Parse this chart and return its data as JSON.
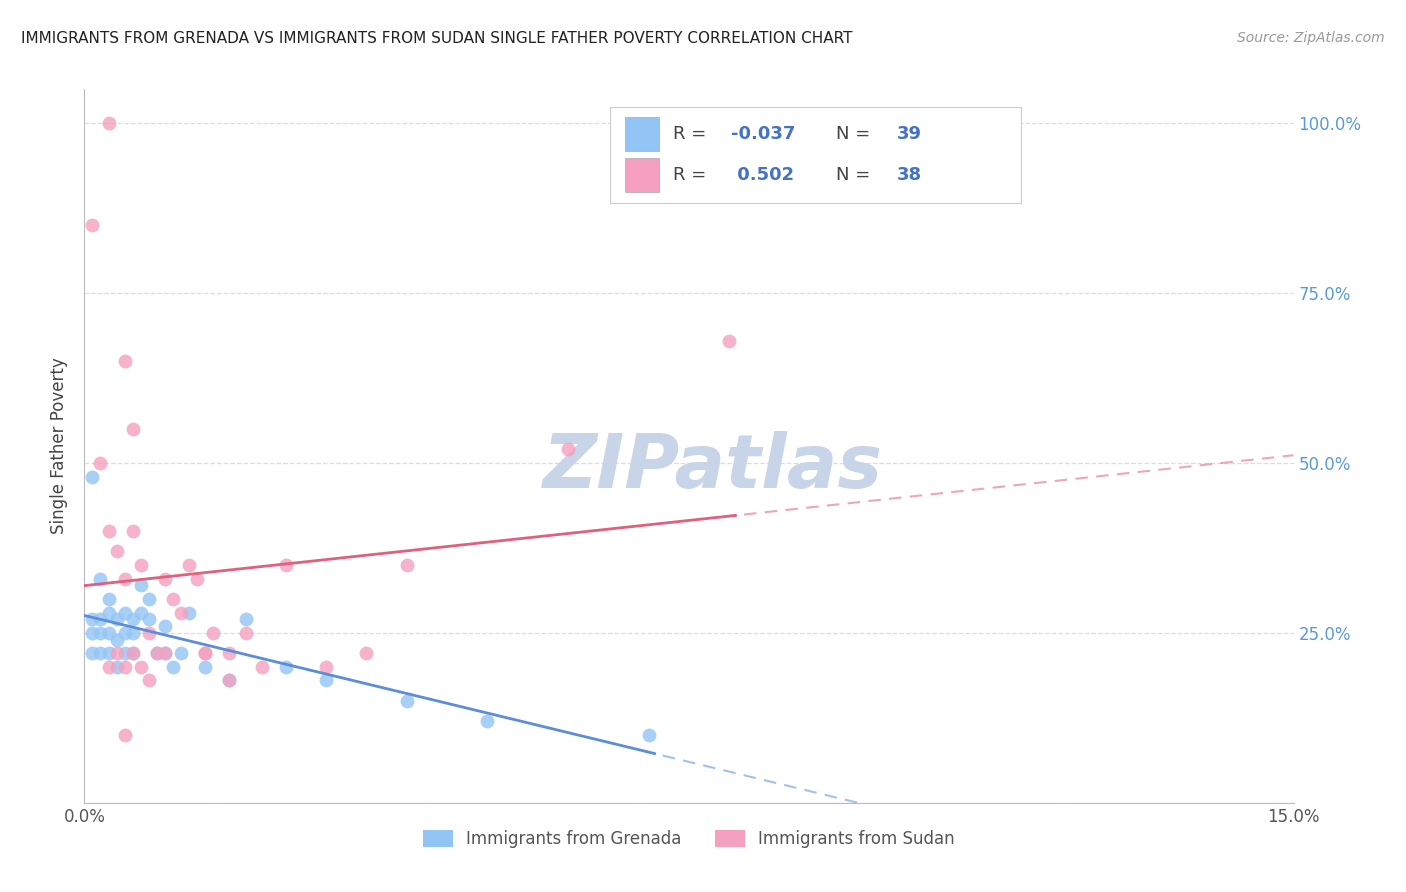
{
  "title": "IMMIGRANTS FROM GRENADA VS IMMIGRANTS FROM SUDAN SINGLE FATHER POVERTY CORRELATION CHART",
  "source": "Source: ZipAtlas.com",
  "ylabel": "Single Father Poverty",
  "xlim": [
    0.0,
    0.15
  ],
  "ylim": [
    0.0,
    1.05
  ],
  "y_ticks": [
    0.0,
    0.25,
    0.5,
    0.75,
    1.0
  ],
  "y_tick_labels_right": [
    "",
    "25.0%",
    "50.0%",
    "75.0%",
    "100.0%"
  ],
  "x_ticks": [
    0.0,
    0.01,
    0.02,
    0.03,
    0.04,
    0.05,
    0.06,
    0.07,
    0.08,
    0.09,
    0.1,
    0.11,
    0.12,
    0.13,
    0.14,
    0.15
  ],
  "x_tick_labels": [
    "0.0%",
    "",
    "",
    "",
    "",
    "",
    "",
    "",
    "",
    "",
    "",
    "",
    "",
    "",
    "",
    "15.0%"
  ],
  "legend_label1": "Immigrants from Grenada",
  "legend_label2": "Immigrants from Sudan",
  "R1": "-0.037",
  "N1": "39",
  "R2": "0.502",
  "N2": "38",
  "color1": "#92c5f5",
  "color2": "#f5a0be",
  "trendline1_color": "#5b8dd9",
  "trendline2_color": "#e0607e",
  "background": "#ffffff",
  "grid_color": "#dddddd",
  "watermark": "ZIPatlas",
  "watermark_color": "#c8d4e8",
  "grenada_x": [
    0.001,
    0.001,
    0.001,
    0.001,
    0.002,
    0.002,
    0.002,
    0.002,
    0.003,
    0.003,
    0.003,
    0.003,
    0.004,
    0.004,
    0.004,
    0.005,
    0.005,
    0.005,
    0.006,
    0.006,
    0.006,
    0.007,
    0.007,
    0.008,
    0.008,
    0.009,
    0.01,
    0.01,
    0.011,
    0.012,
    0.013,
    0.015,
    0.018,
    0.02,
    0.025,
    0.03,
    0.04,
    0.05,
    0.07
  ],
  "grenada_y": [
    0.48,
    0.27,
    0.25,
    0.22,
    0.33,
    0.27,
    0.25,
    0.22,
    0.3,
    0.28,
    0.25,
    0.22,
    0.27,
    0.24,
    0.2,
    0.28,
    0.25,
    0.22,
    0.27,
    0.25,
    0.22,
    0.32,
    0.28,
    0.3,
    0.27,
    0.22,
    0.26,
    0.22,
    0.2,
    0.22,
    0.28,
    0.2,
    0.18,
    0.27,
    0.2,
    0.18,
    0.15,
    0.12,
    0.1
  ],
  "sudan_x": [
    0.001,
    0.002,
    0.003,
    0.003,
    0.004,
    0.004,
    0.005,
    0.005,
    0.006,
    0.006,
    0.007,
    0.008,
    0.009,
    0.01,
    0.01,
    0.011,
    0.012,
    0.013,
    0.014,
    0.015,
    0.016,
    0.018,
    0.02,
    0.022,
    0.025,
    0.03,
    0.035,
    0.04,
    0.06,
    0.08,
    0.003,
    0.005,
    0.006,
    0.007,
    0.008,
    0.015,
    0.018,
    0.005
  ],
  "sudan_y": [
    0.85,
    0.5,
    0.4,
    0.2,
    0.37,
    0.22,
    0.33,
    0.2,
    0.4,
    0.22,
    0.35,
    0.25,
    0.22,
    0.33,
    0.22,
    0.3,
    0.28,
    0.35,
    0.33,
    0.22,
    0.25,
    0.22,
    0.25,
    0.2,
    0.35,
    0.2,
    0.22,
    0.35,
    0.52,
    0.68,
    1.0,
    0.65,
    0.55,
    0.2,
    0.18,
    0.22,
    0.18,
    0.1
  ]
}
